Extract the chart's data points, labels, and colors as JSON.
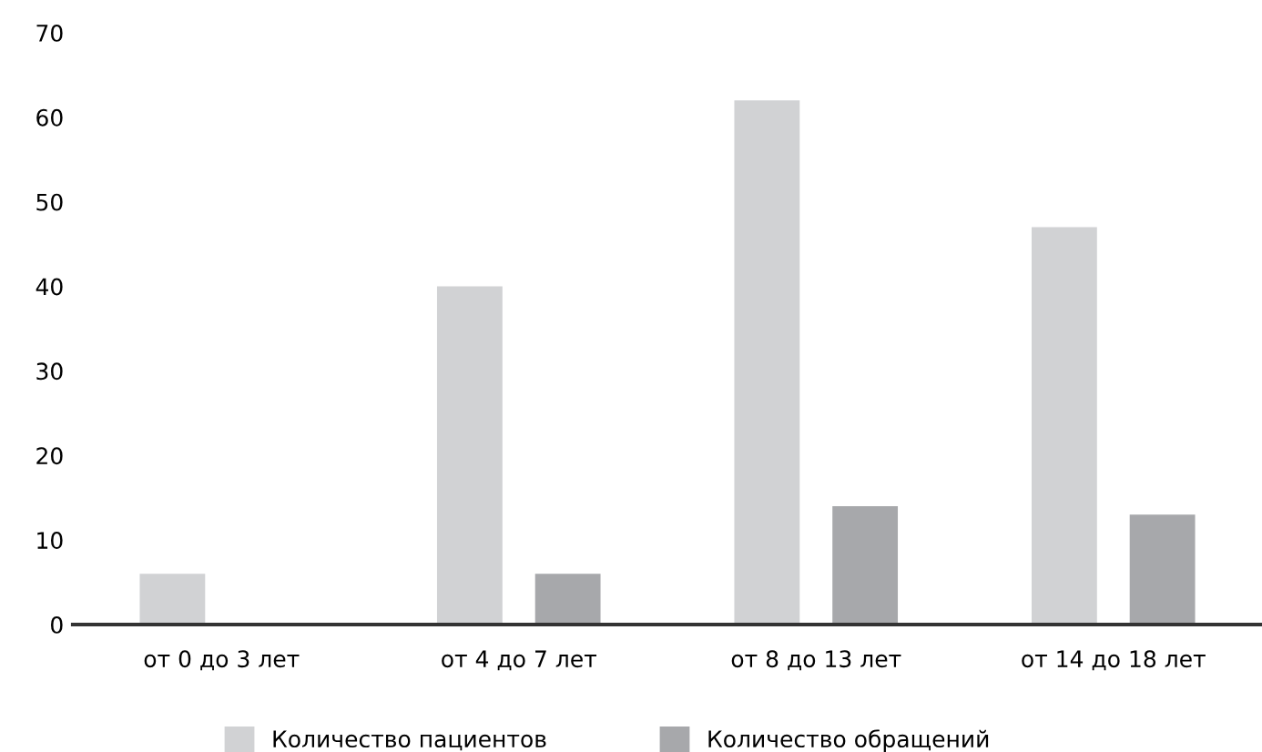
{
  "chart_data": {
    "type": "bar",
    "categories": [
      "от 0 до 3 лет",
      "от 4 до 7 лет",
      "от 8 до 13 лет",
      "от 14 до 18 лет"
    ],
    "series": [
      {
        "name": "Количество пациентов",
        "color": "#d1d2d4",
        "values": [
          6,
          40,
          62,
          47
        ]
      },
      {
        "name": "Количество обращений",
        "color": "#a7a8ab",
        "values": [
          null,
          6,
          14,
          13
        ]
      }
    ],
    "ylim": [
      0,
      70
    ],
    "yticks": [
      0,
      10,
      20,
      30,
      40,
      50,
      60,
      70
    ],
    "grid": false,
    "legend": "bottom"
  }
}
